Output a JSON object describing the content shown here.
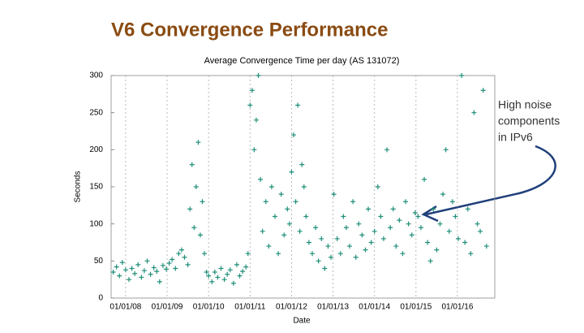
{
  "slide_title": "V6 Convergence Performance",
  "annotation": [
    "High noise",
    "components",
    "in IPv6"
  ],
  "chart_data": {
    "type": "scatter",
    "title": "Average Convergence Time per day (AS 131072)",
    "x_label": "Date",
    "y_label": "Seconds",
    "color": "#1f8f78",
    "grid": "x",
    "xlim": [
      2007.65,
      2016.9
    ],
    "ylim": [
      0,
      300
    ],
    "xticks": [
      {
        "value": 2008,
        "label": "01/01/08"
      },
      {
        "value": 2009,
        "label": "01/01/09"
      },
      {
        "value": 2010,
        "label": "01/01/10"
      },
      {
        "value": 2011,
        "label": "01/01/11"
      },
      {
        "value": 2012,
        "label": "01/01/12"
      },
      {
        "value": 2013,
        "label": "01/01/13"
      },
      {
        "value": 2014,
        "label": "01/01/14"
      },
      {
        "value": 2015,
        "label": "01/01/15"
      },
      {
        "value": 2016,
        "label": "01/01/16"
      }
    ],
    "yticks": [
      0,
      50,
      100,
      150,
      200,
      250,
      300
    ],
    "x": [
      2007.7,
      2007.78,
      2007.85,
      2007.92,
      2008.0,
      2008.08,
      2008.15,
      2008.22,
      2008.3,
      2008.38,
      2008.45,
      2008.52,
      2008.6,
      2008.68,
      2008.75,
      2008.82,
      2008.9,
      2008.98,
      2009.05,
      2009.12,
      2009.2,
      2009.28,
      2009.35,
      2009.42,
      2009.5,
      2009.55,
      2009.6,
      2009.65,
      2009.7,
      2009.75,
      2009.8,
      2009.85,
      2009.9,
      2009.95,
      2010.0,
      2010.08,
      2010.15,
      2010.22,
      2010.3,
      2010.38,
      2010.45,
      2010.52,
      2010.6,
      2010.68,
      2010.75,
      2010.82,
      2010.9,
      2010.95,
      2011.0,
      2011.05,
      2011.1,
      2011.15,
      2011.2,
      2011.25,
      2011.3,
      2011.38,
      2011.45,
      2011.52,
      2011.6,
      2011.68,
      2011.75,
      2011.82,
      2011.9,
      2011.95,
      2012.0,
      2012.05,
      2012.1,
      2012.15,
      2012.2,
      2012.25,
      2012.3,
      2012.35,
      2012.42,
      2012.5,
      2012.58,
      2012.65,
      2012.72,
      2012.8,
      2012.88,
      2012.95,
      2013.02,
      2013.1,
      2013.18,
      2013.25,
      2013.32,
      2013.4,
      2013.48,
      2013.55,
      2013.62,
      2013.7,
      2013.78,
      2013.85,
      2013.92,
      2014.0,
      2014.08,
      2014.15,
      2014.22,
      2014.3,
      2014.38,
      2014.45,
      2014.52,
      2014.6,
      2014.68,
      2014.75,
      2014.82,
      2014.9,
      2014.98,
      2015.05,
      2015.12,
      2015.2,
      2015.28,
      2015.35,
      2015.42,
      2015.5,
      2015.58,
      2015.65,
      2015.72,
      2015.8,
      2015.88,
      2015.95,
      2016.02,
      2016.1,
      2016.18,
      2016.25,
      2016.32,
      2016.4,
      2016.48,
      2016.55,
      2016.62,
      2016.7
    ],
    "values": [
      35,
      42,
      30,
      48,
      38,
      25,
      40,
      33,
      45,
      28,
      37,
      50,
      32,
      41,
      36,
      22,
      44,
      39,
      47,
      52,
      40,
      60,
      65,
      55,
      45,
      120,
      180,
      95,
      150,
      210,
      85,
      130,
      60,
      35,
      30,
      22,
      35,
      28,
      40,
      25,
      32,
      38,
      20,
      45,
      30,
      36,
      42,
      60,
      260,
      280,
      200,
      240,
      300,
      160,
      90,
      130,
      70,
      150,
      110,
      60,
      140,
      85,
      120,
      100,
      170,
      220,
      130,
      260,
      90,
      180,
      150,
      110,
      75,
      60,
      95,
      50,
      80,
      40,
      70,
      55,
      140,
      80,
      60,
      110,
      95,
      70,
      130,
      55,
      100,
      85,
      65,
      120,
      75,
      90,
      150,
      110,
      80,
      200,
      95,
      120,
      70,
      105,
      60,
      130,
      100,
      85,
      115,
      110,
      95,
      160,
      75,
      50,
      120,
      65,
      100,
      140,
      200,
      90,
      130,
      110,
      80,
      300,
      75,
      120,
      60,
      250,
      100,
      90,
      280,
      70
    ]
  }
}
